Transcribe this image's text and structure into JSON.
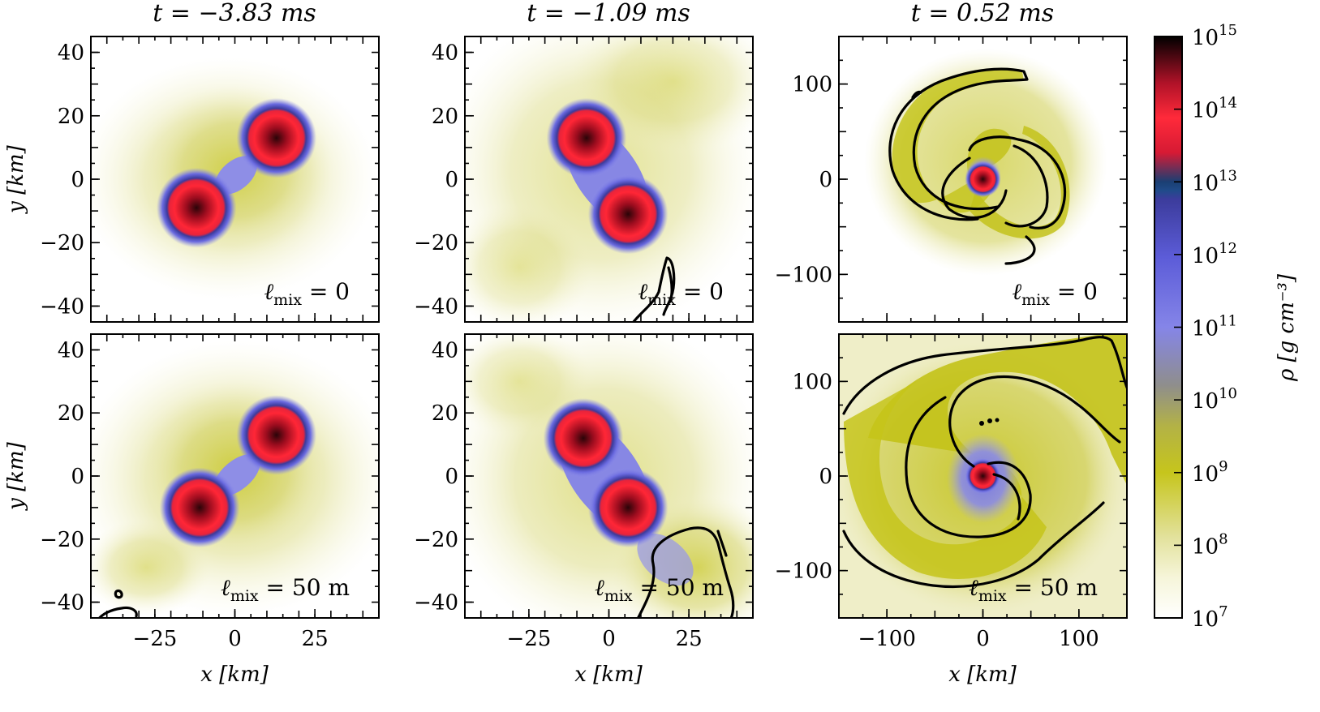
{
  "chart_data": {
    "type": "heatmap",
    "colorbar": {
      "label": "ρ [g cm⁻³]",
      "scale": "log",
      "range": [
        10000000.0,
        1000000000000000.0
      ],
      "tick_exponents": [
        7,
        8,
        9,
        10,
        11,
        12,
        13,
        14,
        15
      ],
      "tick_labels": [
        "10",
        "10",
        "10",
        "10",
        "10",
        "10",
        "10",
        "10",
        "10"
      ],
      "colormap": [
        "#ffffff",
        "#f1f0c7",
        "#d4d36c",
        "#c2c20f",
        "#9e9d70",
        "#7f7cc8",
        "#5b5bd8",
        "#3a3a9a",
        "#1f4f8f",
        "#8a1538",
        "#f01a2a",
        "#ff3040",
        "#000000"
      ]
    },
    "columns": [
      {
        "title": "t = −3.83 ms",
        "xlabel": "x [km]",
        "xlim": [
          -45,
          45
        ],
        "ylim": [
          -45,
          45
        ],
        "xticks": [
          -25,
          0,
          25
        ],
        "yticks": [
          -40,
          -20,
          0,
          20,
          40
        ]
      },
      {
        "title": "t = −1.09 ms",
        "xlabel": "x [km]",
        "xlim": [
          -45,
          45
        ],
        "ylim": [
          -45,
          45
        ],
        "xticks": [
          -25,
          0,
          25
        ],
        "yticks": [
          -40,
          -20,
          0,
          20,
          40
        ]
      },
      {
        "title": "t = 0.52 ms",
        "xlabel": "x [km]",
        "xlim": [
          -150,
          150
        ],
        "ylim": [
          -150,
          150
        ],
        "xticks": [
          -100,
          0,
          100
        ],
        "yticks": [
          -100,
          0,
          100
        ]
      }
    ],
    "rows": [
      {
        "ylabel": "y [km]",
        "annotation": "ℓmix = 0",
        "annotation_math": "ℓ",
        "annotation_sub": "mix",
        "annotation_rest": " = 0"
      },
      {
        "ylabel": "y [km]",
        "annotation": "ℓmix = 50 m",
        "annotation_math": "ℓ",
        "annotation_sub": "mix",
        "annotation_rest": " = 50 m"
      }
    ],
    "neutron_stars": [
      {
        "column": 0,
        "row": 0,
        "stars": [
          {
            "x": -12,
            "y": -9
          },
          {
            "x": 13,
            "y": 13
          }
        ],
        "radius_km": 10
      },
      {
        "column": 0,
        "row": 1,
        "stars": [
          {
            "x": -11,
            "y": -10
          },
          {
            "x": 13,
            "y": 13
          }
        ],
        "radius_km": 10
      },
      {
        "column": 1,
        "row": 0,
        "stars": [
          {
            "x": -7,
            "y": 13
          },
          {
            "x": 6,
            "y": -11
          }
        ],
        "radius_km": 10
      },
      {
        "column": 1,
        "row": 1,
        "stars": [
          {
            "x": -8,
            "y": 12
          },
          {
            "x": 6,
            "y": -10
          }
        ],
        "radius_km": 10
      },
      {
        "column": 2,
        "row": 0,
        "stars": [
          {
            "x": 0,
            "y": 0
          }
        ],
        "radius_km": 15
      },
      {
        "column": 2,
        "row": 1,
        "stars": [
          {
            "x": 0,
            "y": 0
          }
        ],
        "radius_km": 15
      }
    ]
  }
}
